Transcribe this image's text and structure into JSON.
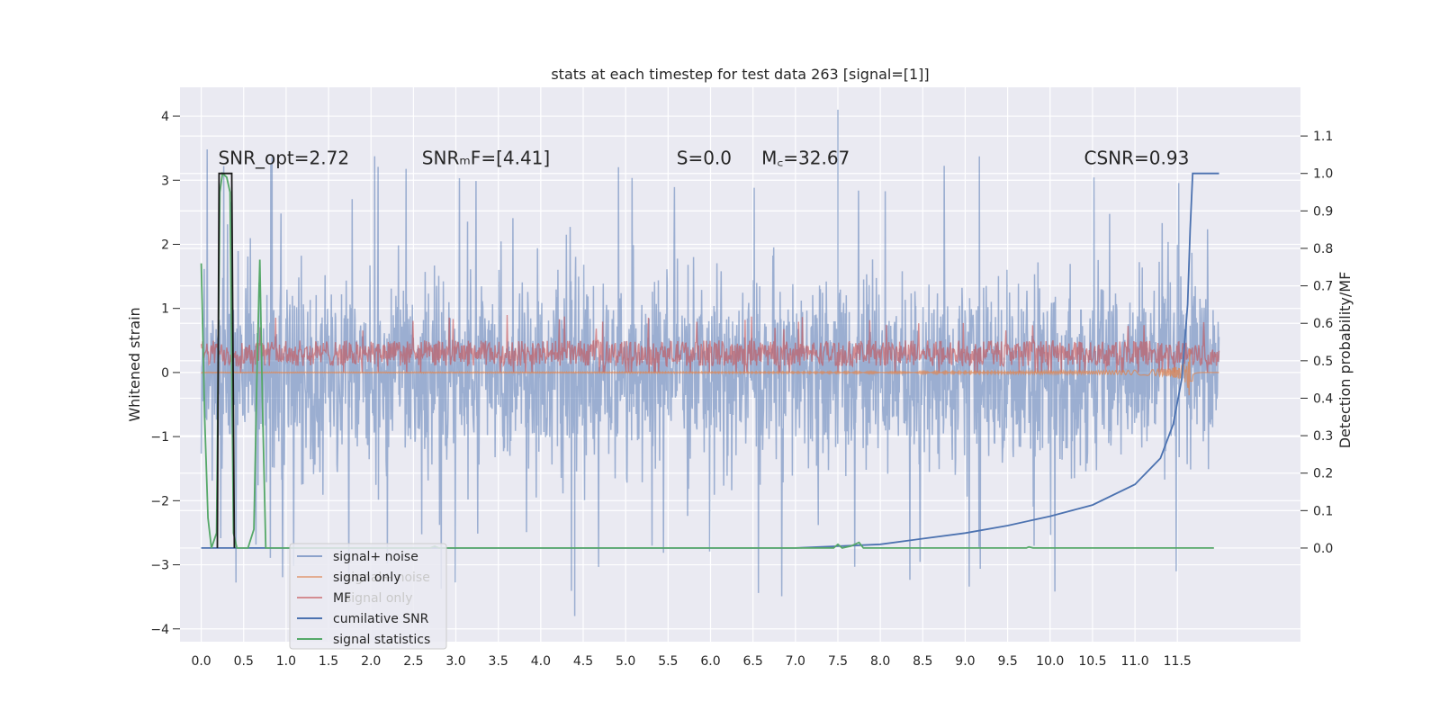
{
  "chart_data": {
    "type": "line",
    "title": "stats at each timestep for test data 263 [signal=[1]]",
    "ylabel_left": "Whitened strain",
    "ylabel_right": "Detection probability/MF",
    "xlim": [
      -0.25,
      12.95
    ],
    "ylim_left": [
      -4.2,
      4.45
    ],
    "ylim_right": [
      -0.25,
      1.23
    ],
    "grid": true,
    "legend_position": "lower-left",
    "x_ticks": [
      "0.0",
      "0.5",
      "1.0",
      "1.5",
      "2.0",
      "2.5",
      "3.0",
      "3.5",
      "4.0",
      "4.5",
      "5.0",
      "5.5",
      "6.0",
      "6.5",
      "7.0",
      "7.5",
      "8.0",
      "8.5",
      "9.0",
      "9.5",
      "10.0",
      "10.5",
      "11.0",
      "11.5"
    ],
    "y_ticks_left": [
      "4",
      "3",
      "2",
      "1",
      "0",
      "−1",
      "−2",
      "−3",
      "−4"
    ],
    "y_ticks_right": [
      "1.1",
      "1.0",
      "0.9",
      "0.8",
      "0.7",
      "0.6",
      "0.5",
      "0.4",
      "0.3",
      "0.2",
      "0.1",
      "0.0"
    ],
    "annotations": [
      {
        "id": "snr_opt",
        "text": "SNR_opt=2.72",
        "x": 0.2,
        "y": 3.35
      },
      {
        "id": "snr_mf",
        "text": "SNRₘF=[4.41]",
        "x": 2.6,
        "y": 3.35
      },
      {
        "id": "s_val",
        "text": "S=0.0",
        "x": 5.6,
        "y": 3.35
      },
      {
        "id": "mc_val",
        "text": "M꜀=32.67",
        "x": 6.6,
        "y": 3.35
      },
      {
        "id": "csnr",
        "text": "CSNR=0.93",
        "x": 10.4,
        "y": 3.35
      }
    ],
    "series": [
      {
        "name": "signal+ noise",
        "color": "#4c72b0",
        "axis": "left",
        "kind": "noise",
        "x_range": [
          0,
          11.99
        ],
        "std": 0.95,
        "spikes_to": [
          4.1,
          -3.8
        ]
      },
      {
        "name": "signal only",
        "color": "#dd8452",
        "axis": "left",
        "kind": "chirp",
        "x_range": [
          0,
          11.99
        ],
        "peak_time": 11.65,
        "peak_amp": -0.6
      },
      {
        "name": "MF",
        "color": "#c44e52",
        "axis": "left",
        "kind": "band",
        "x_range": [
          0,
          11.99
        ],
        "center": 0.3,
        "half_width": 0.2
      },
      {
        "name": "cumilative SNR",
        "color": "#4c72b0",
        "axis": "right",
        "kind": "curve",
        "points": [
          [
            0.0,
            0.0
          ],
          [
            7.0,
            0.0
          ],
          [
            7.5,
            0.005
          ],
          [
            8.0,
            0.01
          ],
          [
            8.5,
            0.025
          ],
          [
            9.0,
            0.04
          ],
          [
            9.5,
            0.06
          ],
          [
            10.0,
            0.085
          ],
          [
            10.5,
            0.115
          ],
          [
            11.0,
            0.17
          ],
          [
            11.3,
            0.24
          ],
          [
            11.45,
            0.33
          ],
          [
            11.55,
            0.45
          ],
          [
            11.62,
            0.65
          ],
          [
            11.65,
            0.85
          ],
          [
            11.68,
            1.0
          ],
          [
            11.99,
            1.0
          ]
        ]
      },
      {
        "name": "signal statistics",
        "color": "#55a868",
        "axis": "right",
        "kind": "curve",
        "points": [
          [
            0.0,
            0.76
          ],
          [
            0.04,
            0.35
          ],
          [
            0.08,
            0.08
          ],
          [
            0.12,
            0.0
          ],
          [
            0.18,
            0.04
          ],
          [
            0.22,
            0.95
          ],
          [
            0.25,
            1.0
          ],
          [
            0.3,
            0.99
          ],
          [
            0.34,
            0.95
          ],
          [
            0.38,
            0.04
          ],
          [
            0.42,
            0.0
          ],
          [
            0.55,
            0.0
          ],
          [
            0.62,
            0.05
          ],
          [
            0.66,
            0.5
          ],
          [
            0.69,
            0.77
          ],
          [
            0.72,
            0.4
          ],
          [
            0.76,
            0.0
          ],
          [
            2.7,
            0.0
          ],
          [
            2.75,
            0.005
          ],
          [
            2.8,
            0.0
          ],
          [
            7.45,
            0.0
          ],
          [
            7.5,
            0.01
          ],
          [
            7.55,
            0.0
          ],
          [
            7.65,
            0.005
          ],
          [
            7.75,
            0.015
          ],
          [
            7.8,
            0.0
          ],
          [
            9.72,
            0.0
          ],
          [
            9.75,
            0.003
          ],
          [
            9.8,
            0.0
          ],
          [
            11.93,
            0.0
          ]
        ]
      },
      {
        "name": "",
        "color": "#1a1a1a",
        "axis": "right",
        "kind": "curve",
        "points": [
          [
            0.19,
            0.0
          ],
          [
            0.21,
            1.0
          ],
          [
            0.36,
            1.0
          ],
          [
            0.39,
            0.0
          ]
        ]
      }
    ]
  }
}
